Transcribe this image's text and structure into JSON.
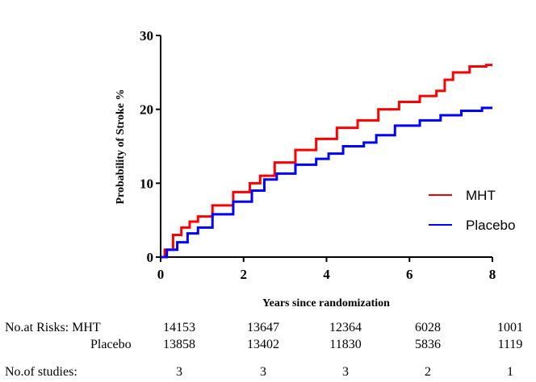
{
  "chart_data": {
    "type": "line",
    "title": "",
    "xlabel": "Years since randomization",
    "ylabel": "Probability of Stroke %",
    "xlim": [
      0,
      8
    ],
    "ylim": [
      0,
      30
    ],
    "xticks": [
      0,
      2,
      4,
      6,
      8
    ],
    "yticks": [
      0,
      10,
      20,
      30
    ],
    "grid": false,
    "legend_position": "right",
    "series": [
      {
        "name": "MHT",
        "color": "#ff0000",
        "points": [
          [
            0,
            0
          ],
          [
            0.2,
            1
          ],
          [
            0.4,
            3
          ],
          [
            0.6,
            4
          ],
          [
            0.8,
            4.8
          ],
          [
            1,
            5.5
          ],
          [
            1.5,
            7
          ],
          [
            2,
            8.8
          ],
          [
            2.3,
            10
          ],
          [
            2.5,
            11
          ],
          [
            3,
            12.8
          ],
          [
            3.5,
            14.5
          ],
          [
            4,
            16
          ],
          [
            4.5,
            17.5
          ],
          [
            5,
            18.5
          ],
          [
            5.5,
            20
          ],
          [
            6,
            21
          ],
          [
            6.5,
            21.8
          ],
          [
            6.8,
            22.5
          ],
          [
            6.9,
            24
          ],
          [
            7.2,
            25
          ],
          [
            7.7,
            25.8
          ],
          [
            8,
            26
          ]
        ]
      },
      {
        "name": "Placebo",
        "color": "#0000ff",
        "points": [
          [
            0,
            0
          ],
          [
            0.3,
            1
          ],
          [
            0.5,
            2
          ],
          [
            0.8,
            3.2
          ],
          [
            1,
            4
          ],
          [
            1.5,
            5.8
          ],
          [
            2,
            7.5
          ],
          [
            2.4,
            9
          ],
          [
            2.6,
            10.5
          ],
          [
            3,
            11.3
          ],
          [
            3.5,
            12.5
          ],
          [
            4,
            13.3
          ],
          [
            4.1,
            14
          ],
          [
            4.7,
            15
          ],
          [
            5.1,
            15.5
          ],
          [
            5.3,
            16.5
          ],
          [
            6,
            17.8
          ],
          [
            6.5,
            18.5
          ],
          [
            7,
            19.2
          ],
          [
            7.5,
            19.8
          ],
          [
            8,
            20.2
          ]
        ]
      }
    ],
    "risk_table": {
      "label": "No.at Risks:",
      "rows": [
        {
          "name": "MHT",
          "values": [
            "14153",
            "13647",
            "12364",
            "6028",
            "1001"
          ]
        },
        {
          "name": "Placebo",
          "values": [
            "13858",
            "13402",
            "11830",
            "5836",
            "1119"
          ]
        }
      ],
      "studies_label": "No.of studies:",
      "studies": [
        "3",
        "3",
        "3",
        "2",
        "1"
      ]
    }
  }
}
